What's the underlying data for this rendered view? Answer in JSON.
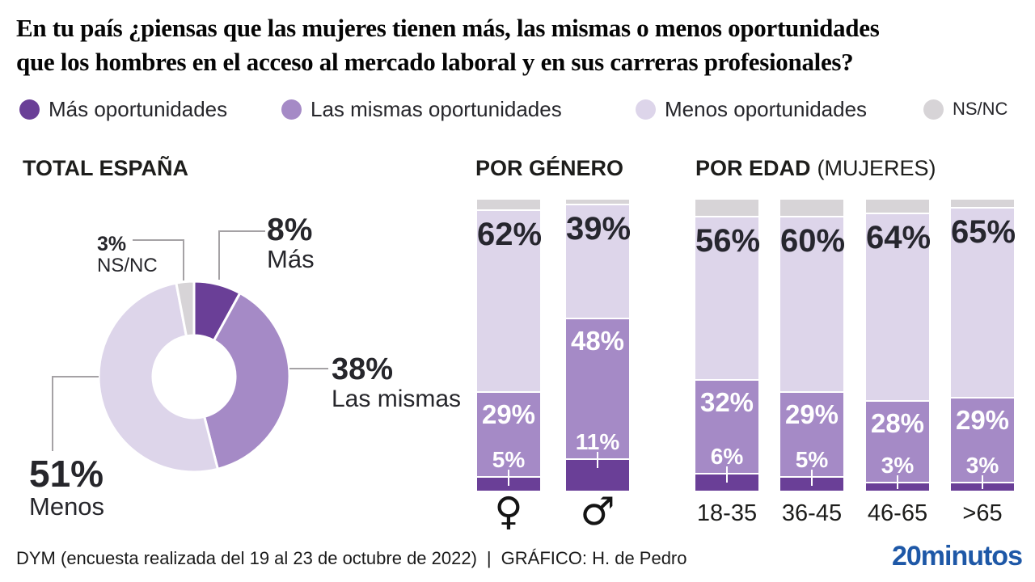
{
  "page": {
    "title_line1": "En tu país ¿piensas que las mujeres tienen más, las mismas o menos oportunidades",
    "title_line2": "que los hombres en el acceso al mercado laboral y en sus carreras profesionales?"
  },
  "legend": {
    "items": [
      {
        "key": "mas",
        "label": "Más oportunidades"
      },
      {
        "key": "mismas",
        "label": "Las mismas oportunidades"
      },
      {
        "key": "menos",
        "label": "Menos oportunidades"
      },
      {
        "key": "nsnc",
        "label": "NS/NC"
      }
    ]
  },
  "sections": {
    "total": {
      "title": "TOTAL ESPAÑA"
    },
    "genero": {
      "title": "POR GÉNERO"
    },
    "edad": {
      "title": "POR EDAD",
      "subtitle": "(MUJERES)"
    }
  },
  "colors": {
    "mas": "#6A3F97",
    "mismas": "#A58AC6",
    "menos": "#DDD5EA",
    "nsnc": "#D7D4D7",
    "text_dark": "#26262B",
    "callout_line": "#A5A2A5",
    "logo_blue": "#1E58A7"
  },
  "donut_callouts": {
    "mas": {
      "value": "8%",
      "name": "Más"
    },
    "mismas": {
      "value": "38%",
      "name": "Las mismas"
    },
    "menos": {
      "value": "51%",
      "name": "Menos"
    },
    "nsnc": {
      "value": "3%",
      "name": "NS/NC"
    }
  },
  "chart_data": [
    {
      "id": "total-espana",
      "type": "pie",
      "style": "donut",
      "title": "TOTAL ESPAÑA",
      "segments": [
        {
          "key": "mas",
          "label": "Más",
          "value": 8,
          "display": "8%"
        },
        {
          "key": "mismas",
          "label": "Las mismas",
          "value": 38,
          "display": "38%"
        },
        {
          "key": "menos",
          "label": "Menos",
          "value": 51,
          "display": "51%"
        },
        {
          "key": "nsnc",
          "label": "NS/NC",
          "value": 3,
          "display": "3%"
        }
      ]
    },
    {
      "id": "por-genero",
      "type": "bar",
      "stacked": true,
      "title": "POR GÉNERO",
      "stack_order_bottom_up": [
        "mas",
        "mismas",
        "menos",
        "nsnc"
      ],
      "bars": [
        {
          "category": "♀",
          "category_name": "mujeres",
          "values": {
            "mas": 5,
            "mismas": 29,
            "menos": 62,
            "nsnc": 4
          },
          "labels": {
            "mas": "5%",
            "mismas": "29%",
            "menos": "62%"
          }
        },
        {
          "category": "♂",
          "category_name": "hombres",
          "values": {
            "mas": 11,
            "mismas": 48,
            "menos": 39,
            "nsnc": 2
          },
          "labels": {
            "mas": "11%",
            "mismas": "48%",
            "menos": "39%"
          }
        }
      ]
    },
    {
      "id": "por-edad",
      "type": "bar",
      "stacked": true,
      "title": "POR EDAD (MUJERES)",
      "stack_order_bottom_up": [
        "mas",
        "mismas",
        "menos",
        "nsnc"
      ],
      "bars": [
        {
          "category": "18-35",
          "values": {
            "mas": 6,
            "mismas": 32,
            "menos": 56,
            "nsnc": 6
          },
          "labels": {
            "mas": "6%",
            "mismas": "32%",
            "menos": "56%"
          }
        },
        {
          "category": "36-45",
          "values": {
            "mas": 5,
            "mismas": 29,
            "menos": 60,
            "nsnc": 6
          },
          "labels": {
            "mas": "5%",
            "mismas": "29%",
            "menos": "60%"
          }
        },
        {
          "category": "46-65",
          "values": {
            "mas": 3,
            "mismas": 28,
            "menos": 64,
            "nsnc": 5
          },
          "labels": {
            "mas": "3%",
            "mismas": "28%",
            "menos": "64%"
          }
        },
        {
          "category": ">65",
          "values": {
            "mas": 3,
            "mismas": 29,
            "menos": 65,
            "nsnc": 3
          },
          "labels": {
            "mas": "3%",
            "mismas": "29%",
            "menos": "65%"
          }
        }
      ]
    }
  ],
  "footer": {
    "source": "DYM (encuesta realizada del 19 al 23 de octubre de 2022)",
    "separator": "|",
    "credit": "GRÁFICO: H. de Pedro",
    "logo": "20minutos"
  }
}
